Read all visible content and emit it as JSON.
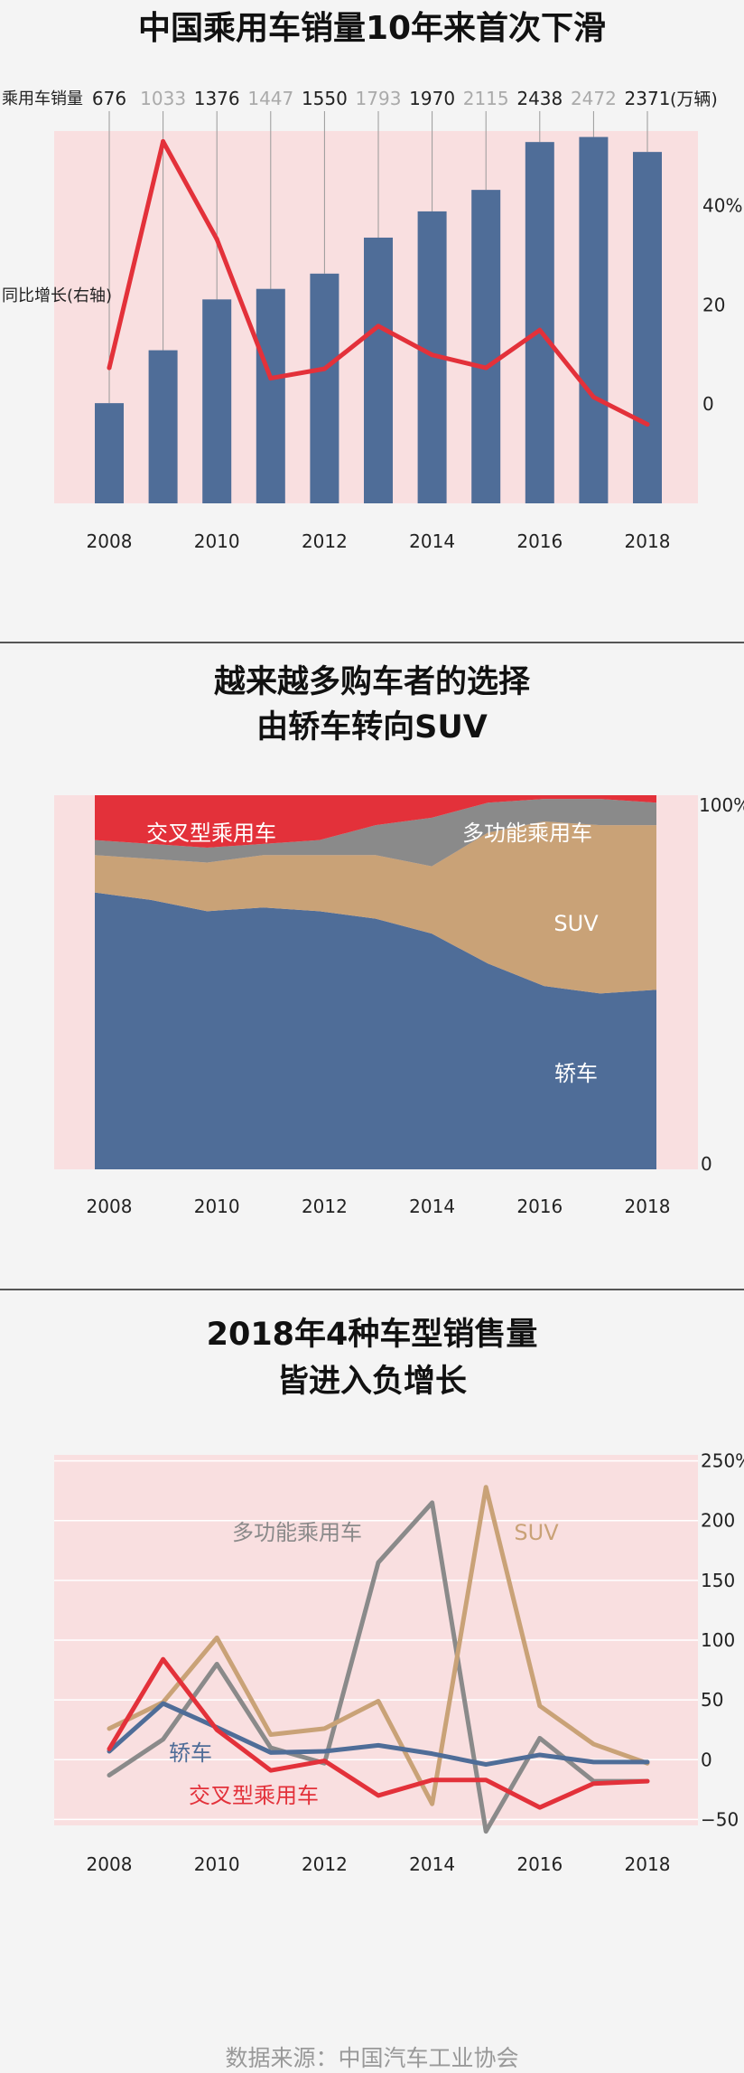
{
  "chart_data": [
    {
      "type": "bar",
      "title": "中国乘用车销量10年来首次下滑",
      "categories": [
        "2008",
        "2009",
        "2010",
        "2011",
        "2012",
        "2013",
        "2014",
        "2015",
        "2016",
        "2017",
        "2018"
      ],
      "x_tick_labels": [
        "2008",
        "2010",
        "2012",
        "2014",
        "2016",
        "2018"
      ],
      "series": [
        {
          "name": "乘用车销量",
          "unit": "(万辆)",
          "type": "bar",
          "color": "#4f6d98",
          "values": [
            676,
            1033,
            1376,
            1447,
            1550,
            1793,
            1970,
            2115,
            2438,
            2472,
            2371
          ]
        },
        {
          "name": "同比增长(右轴)",
          "type": "line",
          "axis": "right",
          "color": "#e3313a",
          "values": [
            7.3,
            52.9,
            33.2,
            5.2,
            7.1,
            15.7,
            9.9,
            7.3,
            14.9,
            1.4,
            -4.1
          ]
        }
      ],
      "value_labels": [
        "676",
        "1033",
        "1376",
        "1447",
        "1550",
        "1793",
        "1970",
        "2115",
        "2438",
        "2472",
        "2371"
      ],
      "unit_label": "(万辆)",
      "right_axis": {
        "ticks": [
          "40%",
          "20",
          "0"
        ],
        "ylim": [
          -20,
          55
        ]
      },
      "bar_ylim": [
        0,
        2500
      ],
      "label_colors": {
        "dark": "#222222",
        "light": "#aaaaaa"
      }
    },
    {
      "type": "area",
      "title_lines": [
        "越来越多购车者的选择",
        "由轿车转向SUV"
      ],
      "x": [
        "2008",
        "2009",
        "2010",
        "2011",
        "2012",
        "2013",
        "2014",
        "2015",
        "2016",
        "2017",
        "2018"
      ],
      "x_tick_labels": [
        "2008",
        "2010",
        "2012",
        "2014",
        "2016",
        "2018"
      ],
      "stacked_percent": true,
      "right_axis": {
        "ticks": [
          "100%",
          "0"
        ]
      },
      "series": [
        {
          "name": "轿车",
          "color": "#4f6d98",
          "values": [
            74,
            72,
            69,
            70,
            69,
            67,
            63,
            55,
            49,
            47,
            48
          ]
        },
        {
          "name": "SUV",
          "color": "#c9a277",
          "values": [
            10,
            11,
            13,
            14,
            15,
            17,
            18,
            35,
            44,
            45,
            44
          ]
        },
        {
          "name": "多功能乘用车",
          "color": "#8a8a8a",
          "values": [
            4,
            4,
            4,
            3,
            4,
            8,
            13,
            8,
            6,
            7,
            6
          ]
        },
        {
          "name": "交叉型乘用车",
          "color": "#e3313a",
          "values": [
            12,
            13,
            14,
            13,
            12,
            8,
            6,
            2,
            1,
            1,
            2
          ]
        }
      ]
    },
    {
      "type": "line",
      "title_lines": [
        "2018年4种车型销售量",
        "皆进入负增长"
      ],
      "x": [
        "2008",
        "2009",
        "2010",
        "2011",
        "2012",
        "2013",
        "2014",
        "2015",
        "2016",
        "2017",
        "2018"
      ],
      "x_tick_labels": [
        "2008",
        "2010",
        "2012",
        "2014",
        "2016",
        "2018"
      ],
      "right_axis": {
        "ticks": [
          "250%",
          "200",
          "150",
          "100",
          "50",
          "0",
          "−50"
        ],
        "ylim": [
          -55,
          255
        ]
      },
      "series": [
        {
          "name": "多功能乘用车",
          "color": "#8a8a8a",
          "values": [
            -13,
            17,
            80,
            10,
            -3,
            165,
            215,
            -60,
            18,
            -18,
            -18
          ]
        },
        {
          "name": "SUV",
          "color": "#c9a277",
          "values": [
            26,
            48,
            102,
            21,
            26,
            49,
            -37,
            228,
            45,
            13,
            -3
          ]
        },
        {
          "name": "轿车",
          "color": "#4f6d98",
          "values": [
            7,
            47,
            27,
            6,
            7,
            12,
            5,
            -4,
            4,
            -2,
            -2
          ]
        },
        {
          "name": "交叉型乘用车",
          "color": "#e3313a",
          "values": [
            9,
            84,
            25,
            -9,
            -1,
            -30,
            -17,
            -17,
            -40,
            -20,
            -18
          ]
        }
      ]
    }
  ],
  "footer": {
    "source": "数据来源：中国汽车工业协会"
  }
}
